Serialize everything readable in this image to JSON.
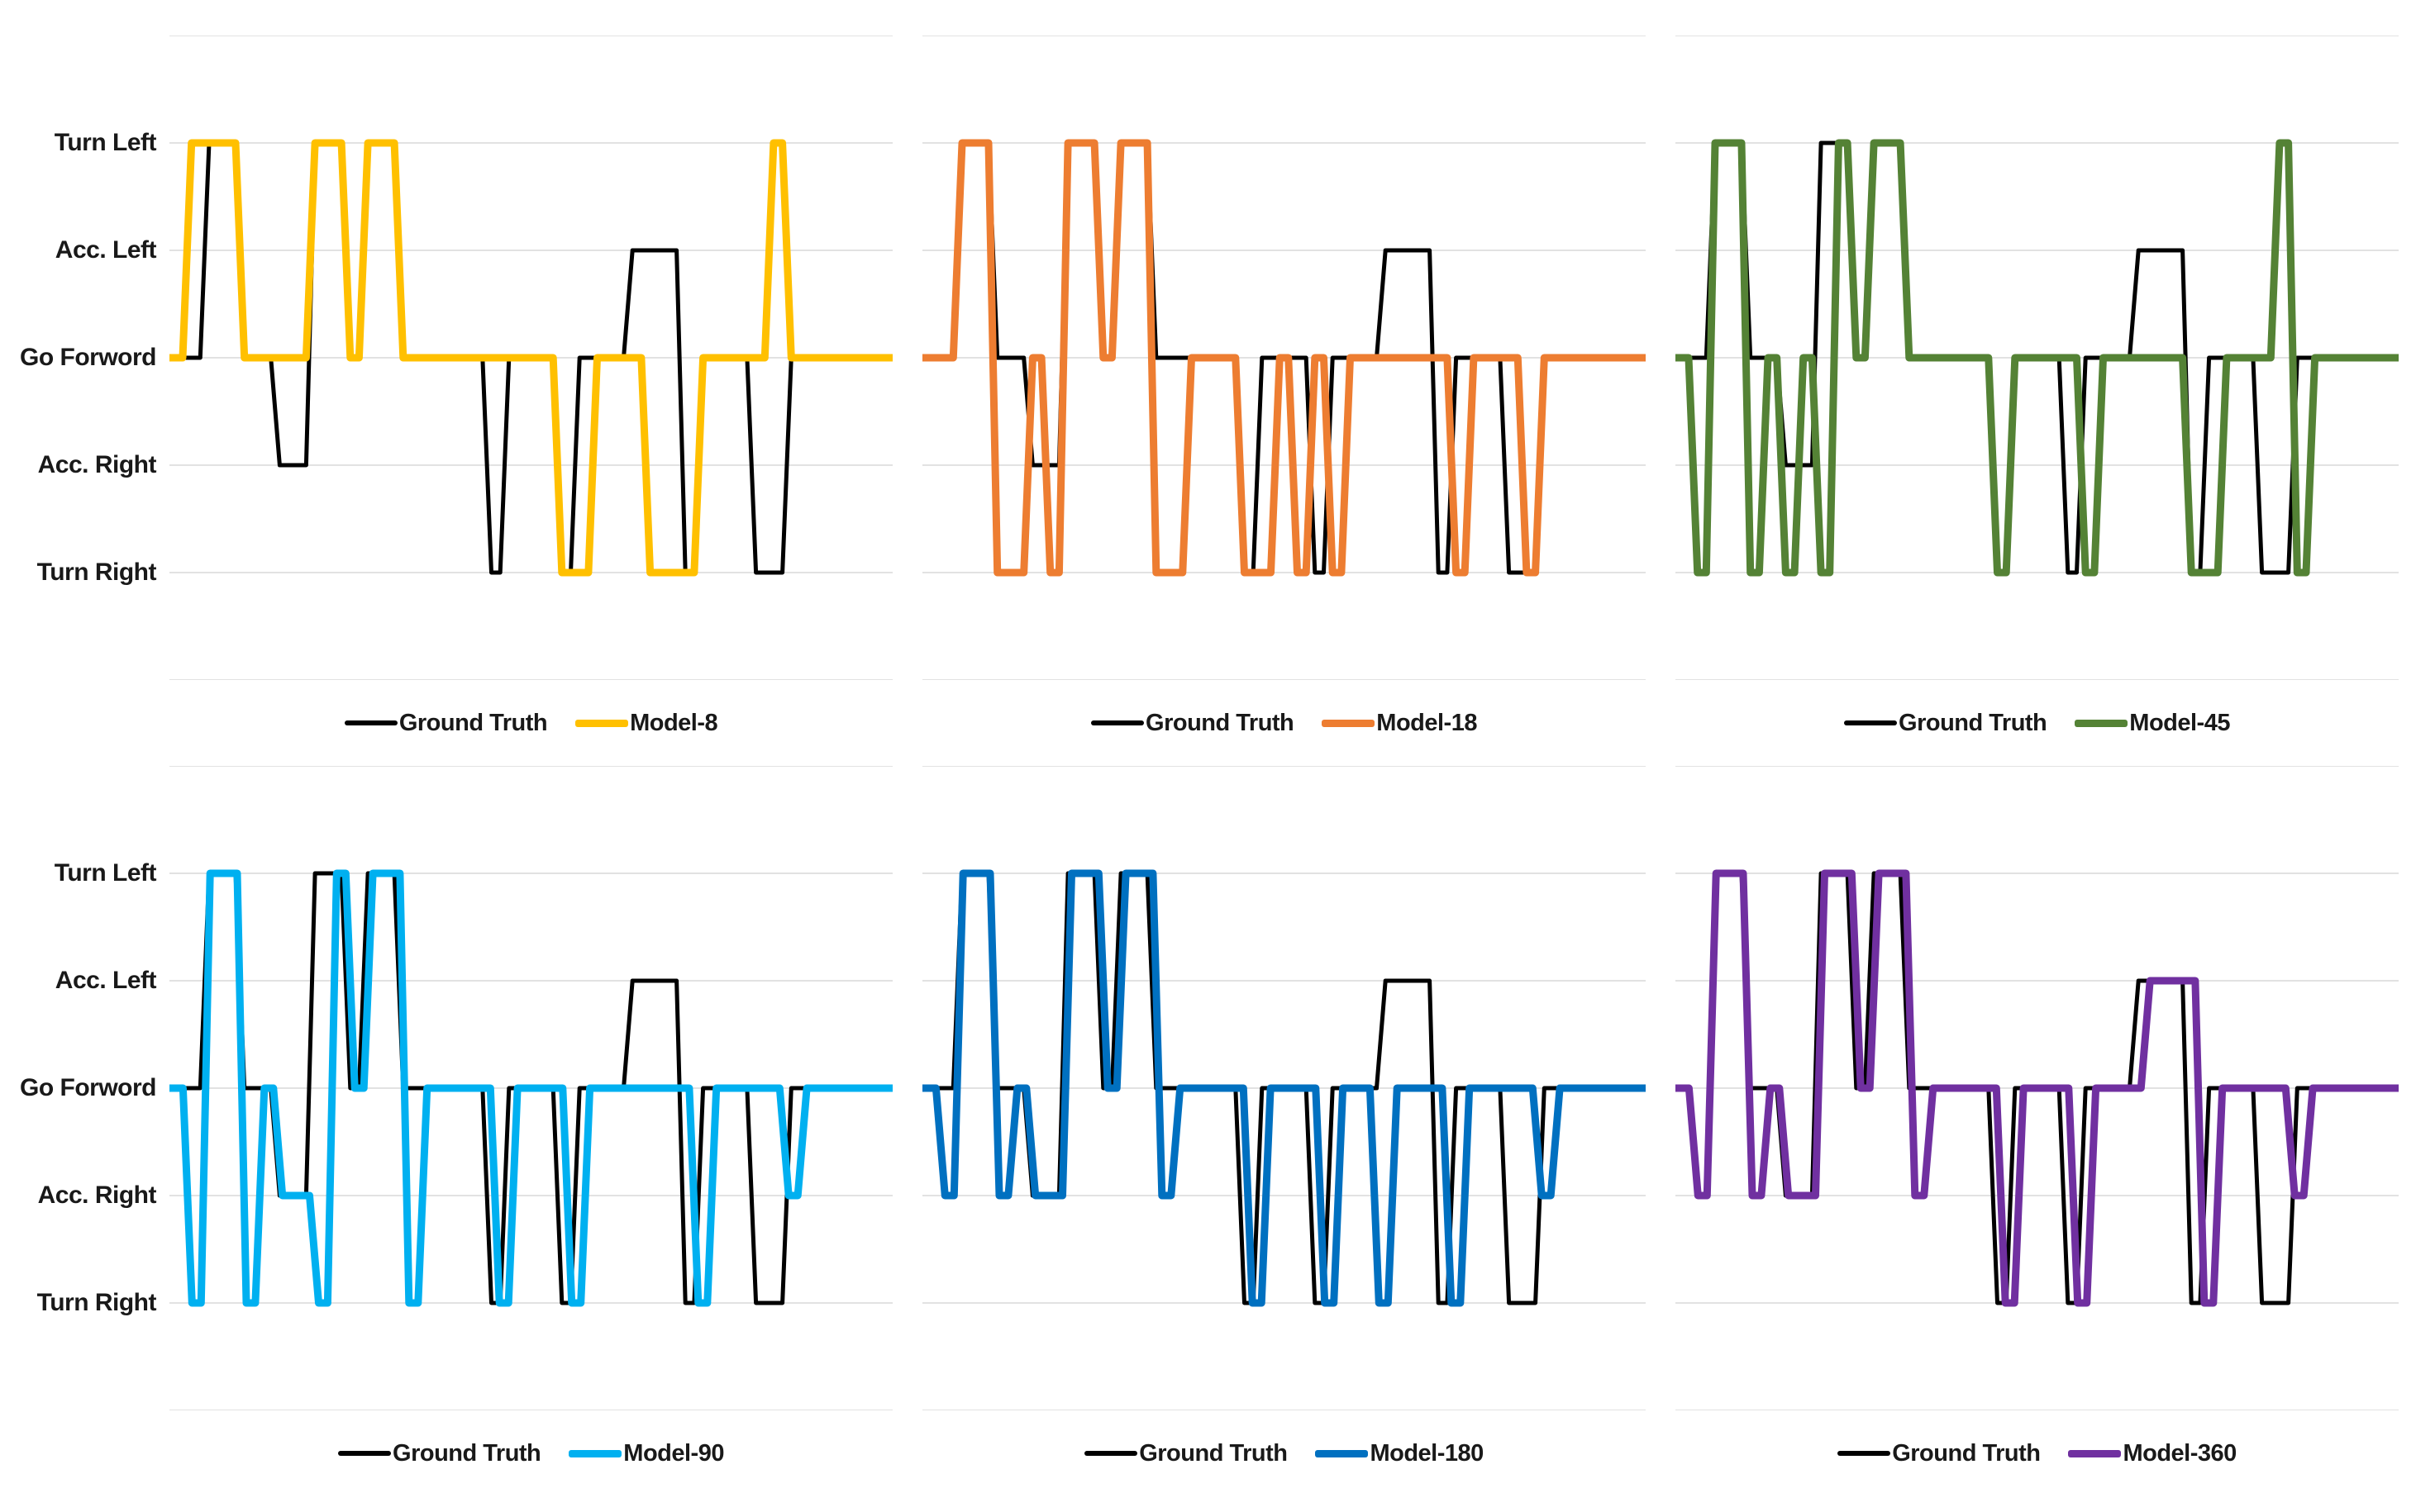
{
  "page": {
    "background": "#FFFFFF"
  },
  "chart_data": {
    "type": "line",
    "layout": "2 rows x 3 columns of step-line charts comparing ground truth driving actions vs model predictions",
    "grid": {
      "horizontal_gridlines": true,
      "gridline_color": "#D9D9D9",
      "vertical_gridlines": false
    },
    "x": {
      "steps": 40,
      "tick_labels_shown": false
    },
    "y": {
      "tick_labels": [
        "Turn Left",
        "Acc. Left",
        "Go Forword",
        "Acc. Right",
        "Turn Right"
      ],
      "tick_values": [
        2,
        1,
        0,
        -1,
        -2
      ],
      "range_top": 3,
      "range_bottom": -3,
      "labels_shown_only_on_left_column": true
    },
    "legend_position": "bottom-center",
    "ground_truth_color": "#000000",
    "charts": [
      {
        "position": "top-left",
        "series": [
          {
            "name": "Ground Truth",
            "color": "#000000",
            "values": [
              0,
              0,
              2,
              2,
              0,
              0,
              -1,
              -1,
              2,
              2,
              0,
              2,
              2,
              0,
              0,
              0,
              0,
              0,
              -2,
              0,
              0,
              0,
              -2,
              0,
              0,
              0,
              1,
              1,
              1,
              -2,
              0,
              0,
              0,
              -2,
              -2,
              0,
              0,
              0,
              0,
              0,
              0
            ]
          },
          {
            "name": "Model-8",
            "color": "#FFC000",
            "values": [
              0,
              2,
              2,
              2,
              0,
              0,
              0,
              0,
              2,
              2,
              0,
              2,
              2,
              0,
              0,
              0,
              0,
              0,
              0,
              0,
              0,
              0,
              -2,
              -2,
              0,
              0,
              0,
              -2,
              -2,
              -2,
              0,
              0,
              0,
              0,
              2,
              0,
              0,
              0,
              0,
              0,
              0
            ]
          }
        ]
      },
      {
        "position": "top-middle",
        "series": [
          {
            "name": "Ground Truth",
            "color": "#000000",
            "values": [
              0,
              0,
              2,
              2,
              0,
              0,
              -1,
              -1,
              2,
              2,
              0,
              2,
              2,
              0,
              0,
              0,
              0,
              0,
              -2,
              0,
              0,
              0,
              -2,
              0,
              0,
              0,
              1,
              1,
              1,
              -2,
              0,
              0,
              0,
              -2,
              -2,
              0,
              0,
              0,
              0,
              0,
              0
            ]
          },
          {
            "name": "Model-18",
            "color": "#ED7D31",
            "values": [
              0,
              0,
              2,
              2,
              -2,
              -2,
              0,
              -2,
              2,
              2,
              0,
              2,
              2,
              -2,
              -2,
              0,
              0,
              0,
              -2,
              -2,
              0,
              -2,
              0,
              -2,
              0,
              0,
              0,
              0,
              0,
              0,
              -2,
              0,
              0,
              0,
              -2,
              0,
              0,
              0,
              0,
              0,
              0
            ]
          }
        ]
      },
      {
        "position": "top-right",
        "series": [
          {
            "name": "Ground Truth",
            "color": "#000000",
            "values": [
              0,
              0,
              2,
              2,
              0,
              0,
              -1,
              -1,
              2,
              2,
              0,
              2,
              2,
              0,
              0,
              0,
              0,
              0,
              -2,
              0,
              0,
              0,
              -2,
              0,
              0,
              0,
              1,
              1,
              1,
              -2,
              0,
              0,
              0,
              -2,
              -2,
              0,
              0,
              0,
              0,
              0,
              0
            ]
          },
          {
            "name": "Model-45",
            "color": "#548235",
            "values": [
              0,
              -2,
              2,
              2,
              -2,
              0,
              -2,
              0,
              -2,
              2,
              0,
              2,
              2,
              0,
              0,
              0,
              0,
              0,
              -2,
              0,
              0,
              0,
              0,
              -2,
              0,
              0,
              0,
              0,
              0,
              -2,
              -2,
              0,
              0,
              0,
              2,
              -2,
              0,
              0,
              0,
              0,
              0
            ]
          }
        ]
      },
      {
        "position": "bottom-left",
        "series": [
          {
            "name": "Ground Truth",
            "color": "#000000",
            "values": [
              0,
              0,
              2,
              2,
              0,
              0,
              -1,
              -1,
              2,
              2,
              0,
              2,
              2,
              0,
              0,
              0,
              0,
              0,
              -2,
              0,
              0,
              0,
              -2,
              0,
              0,
              0,
              1,
              1,
              1,
              -2,
              0,
              0,
              0,
              -2,
              -2,
              0,
              0,
              0,
              0,
              0,
              0
            ]
          },
          {
            "name": "Model-90",
            "color": "#00B0F0",
            "values": [
              0,
              -2,
              2,
              2,
              -2,
              0,
              -1,
              -1,
              -2,
              2,
              0,
              2,
              2,
              -2,
              0,
              0,
              0,
              0,
              -2,
              0,
              0,
              0,
              -2,
              0,
              0,
              0,
              0,
              0,
              0,
              -2,
              0,
              0,
              0,
              0,
              -1,
              0,
              0,
              0,
              0,
              0
            ]
          }
        ]
      },
      {
        "position": "bottom-middle",
        "series": [
          {
            "name": "Ground Truth",
            "color": "#000000",
            "values": [
              0,
              0,
              2,
              2,
              0,
              0,
              -1,
              -1,
              2,
              2,
              0,
              2,
              2,
              0,
              0,
              0,
              0,
              0,
              -2,
              0,
              0,
              0,
              -2,
              0,
              0,
              0,
              1,
              1,
              1,
              -2,
              0,
              0,
              0,
              -2,
              -2,
              0,
              0,
              0,
              0,
              0,
              0
            ]
          },
          {
            "name": "Model-180",
            "color": "#0070C0",
            "values": [
              0,
              -1,
              2,
              2,
              -1,
              0,
              -1,
              -1,
              2,
              2,
              0,
              2,
              2,
              -1,
              0,
              0,
              0,
              0,
              -2,
              0,
              0,
              0,
              -2,
              0,
              0,
              -2,
              0,
              0,
              0,
              -2,
              0,
              0,
              0,
              0,
              -1,
              0,
              0,
              0,
              0,
              0
            ]
          }
        ]
      },
      {
        "position": "bottom-right",
        "series": [
          {
            "name": "Ground Truth",
            "color": "#000000",
            "values": [
              0,
              -1,
              2,
              2,
              0,
              0,
              -1,
              -1,
              2,
              2,
              0,
              2,
              2,
              0,
              0,
              0,
              0,
              0,
              -2,
              0,
              0,
              0,
              -2,
              0,
              0,
              0,
              1,
              1,
              1,
              -2,
              0,
              0,
              0,
              -2,
              -2,
              0,
              0,
              0,
              0,
              0,
              0
            ]
          },
          {
            "name": "Model-360",
            "color": "#7030A0",
            "values": [
              0,
              -1,
              2,
              2,
              -1,
              0,
              -1,
              -1,
              2,
              2,
              0,
              2,
              2,
              -1,
              0,
              0,
              0,
              0,
              -2,
              0,
              0,
              0,
              -2,
              0,
              0,
              0,
              1,
              1,
              1,
              -2,
              0,
              0,
              0,
              0,
              -1,
              0,
              0,
              0,
              0,
              0
            ]
          }
        ]
      }
    ]
  }
}
